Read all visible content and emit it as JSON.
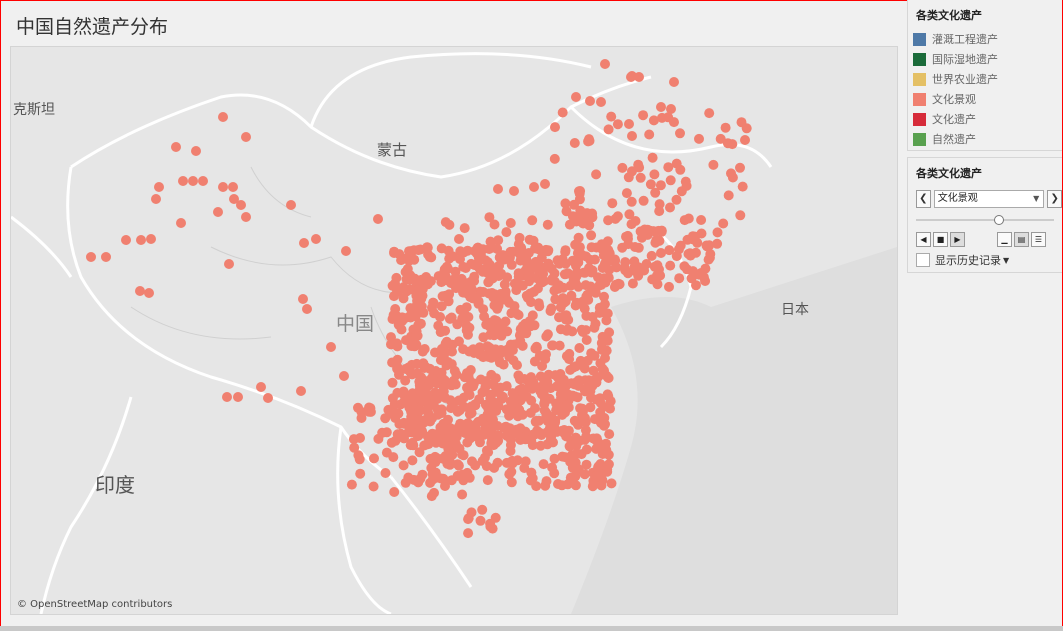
{
  "title": "中国自然遗产分布",
  "map": {
    "labels": {
      "kazakhstan": "克斯坦",
      "mongolia": "蒙古",
      "china": "中国",
      "japan": "日本",
      "india": "印度"
    },
    "attribution": "© OpenStreetMap contributors",
    "colors": {
      "land": "#e6e6e6",
      "borders": "#ffffff",
      "sea": "#d8d8d8",
      "point": "#f08070"
    }
  },
  "legend": {
    "title": "各类文化遗产",
    "items": [
      {
        "label": "灌溉工程遗产",
        "color": "#4e79a7"
      },
      {
        "label": "国际湿地遗产",
        "color": "#1b6b3a"
      },
      {
        "label": "世界农业遗产",
        "color": "#e4c065"
      },
      {
        "label": "文化景观",
        "color": "#f08070"
      },
      {
        "label": "文化遗产",
        "color": "#d62b3a"
      },
      {
        "label": "自然遗产",
        "color": "#59a14f"
      }
    ]
  },
  "filter": {
    "title": "各类文化遗产",
    "selected": "文化景观",
    "prev_icon": "chevron-left-icon",
    "next_icon": "chevron-right-icon",
    "slider_value": 0.6,
    "history_label": "显示历史记录"
  }
}
